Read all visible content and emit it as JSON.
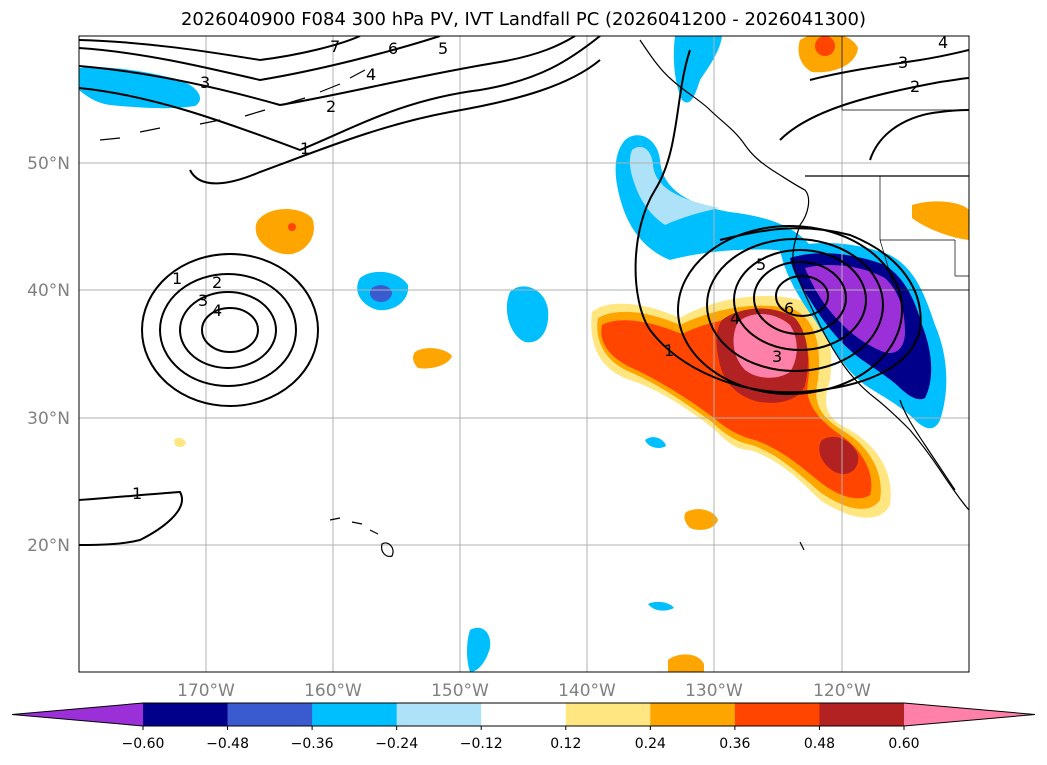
{
  "title": "2026040900 F084 300 hPa PV, IVT Landfall PC (2026041200 - 2026041300)",
  "latitude_labels": [
    "50°N",
    "40°N",
    "30°N",
    "20°N"
  ],
  "longitude_labels": [
    "170°W",
    "160°W",
    "150°W",
    "140°W",
    "130°W",
    "120°W"
  ],
  "contour_labels": [
    "1",
    "2",
    "3",
    "4",
    "5",
    "6",
    "7"
  ],
  "colorbar": {
    "ticks": [
      "−0.60",
      "−0.48",
      "−0.36",
      "−0.24",
      "−0.12",
      "0.12",
      "0.24",
      "0.36",
      "0.48",
      "0.60"
    ],
    "colors": [
      "#9b30d9",
      "#00008b",
      "#3a5bd0",
      "#00bfff",
      "#aee2f8",
      "#ffffff",
      "#ffe680",
      "#ffa500",
      "#ff4500",
      "#b22222",
      "#ff80a8"
    ]
  },
  "colors": {
    "gridline": "#b0b0b0",
    "coastline": "#000000",
    "contour": "#000000"
  }
}
